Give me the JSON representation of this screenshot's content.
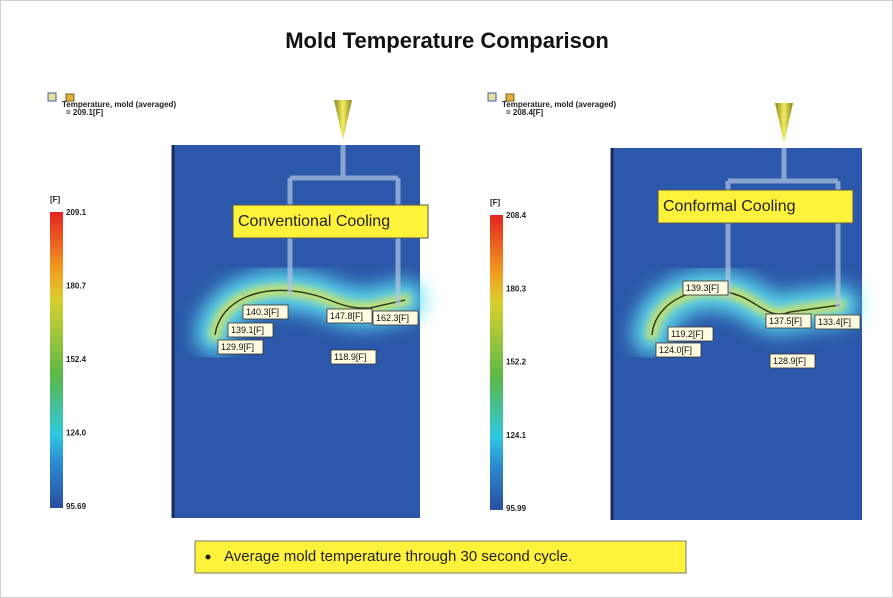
{
  "title": "Mold Temperature Comparison",
  "panels": [
    {
      "result_name": "Temperature, mold (averaged)",
      "result_value": "= 209.1[F]",
      "unit": "[F]",
      "scale": [
        "209.1",
        "180.7",
        "152.4",
        "124.0",
        "95.69"
      ],
      "callout": "Conventional Cooling",
      "probes": [
        "140.3[F]",
        "139.1[F]",
        "129.9[F]",
        "147.8[F]",
        "162.3[F]",
        "118.9[F]"
      ]
    },
    {
      "result_name": "Temperature, mold (averaged)",
      "result_value": "= 208.4[F]",
      "unit": "[F]",
      "scale": [
        "208.4",
        "180.3",
        "152.2",
        "124.1",
        "95.99"
      ],
      "callout": "Conformal Cooling",
      "probes": [
        "139.3[F]",
        "119.2[F]",
        "124.0[F]",
        "137.5[F]",
        "133.4[F]",
        "128.9[F]"
      ]
    }
  ],
  "note": "Average mold temperature  through 30 second cycle."
}
